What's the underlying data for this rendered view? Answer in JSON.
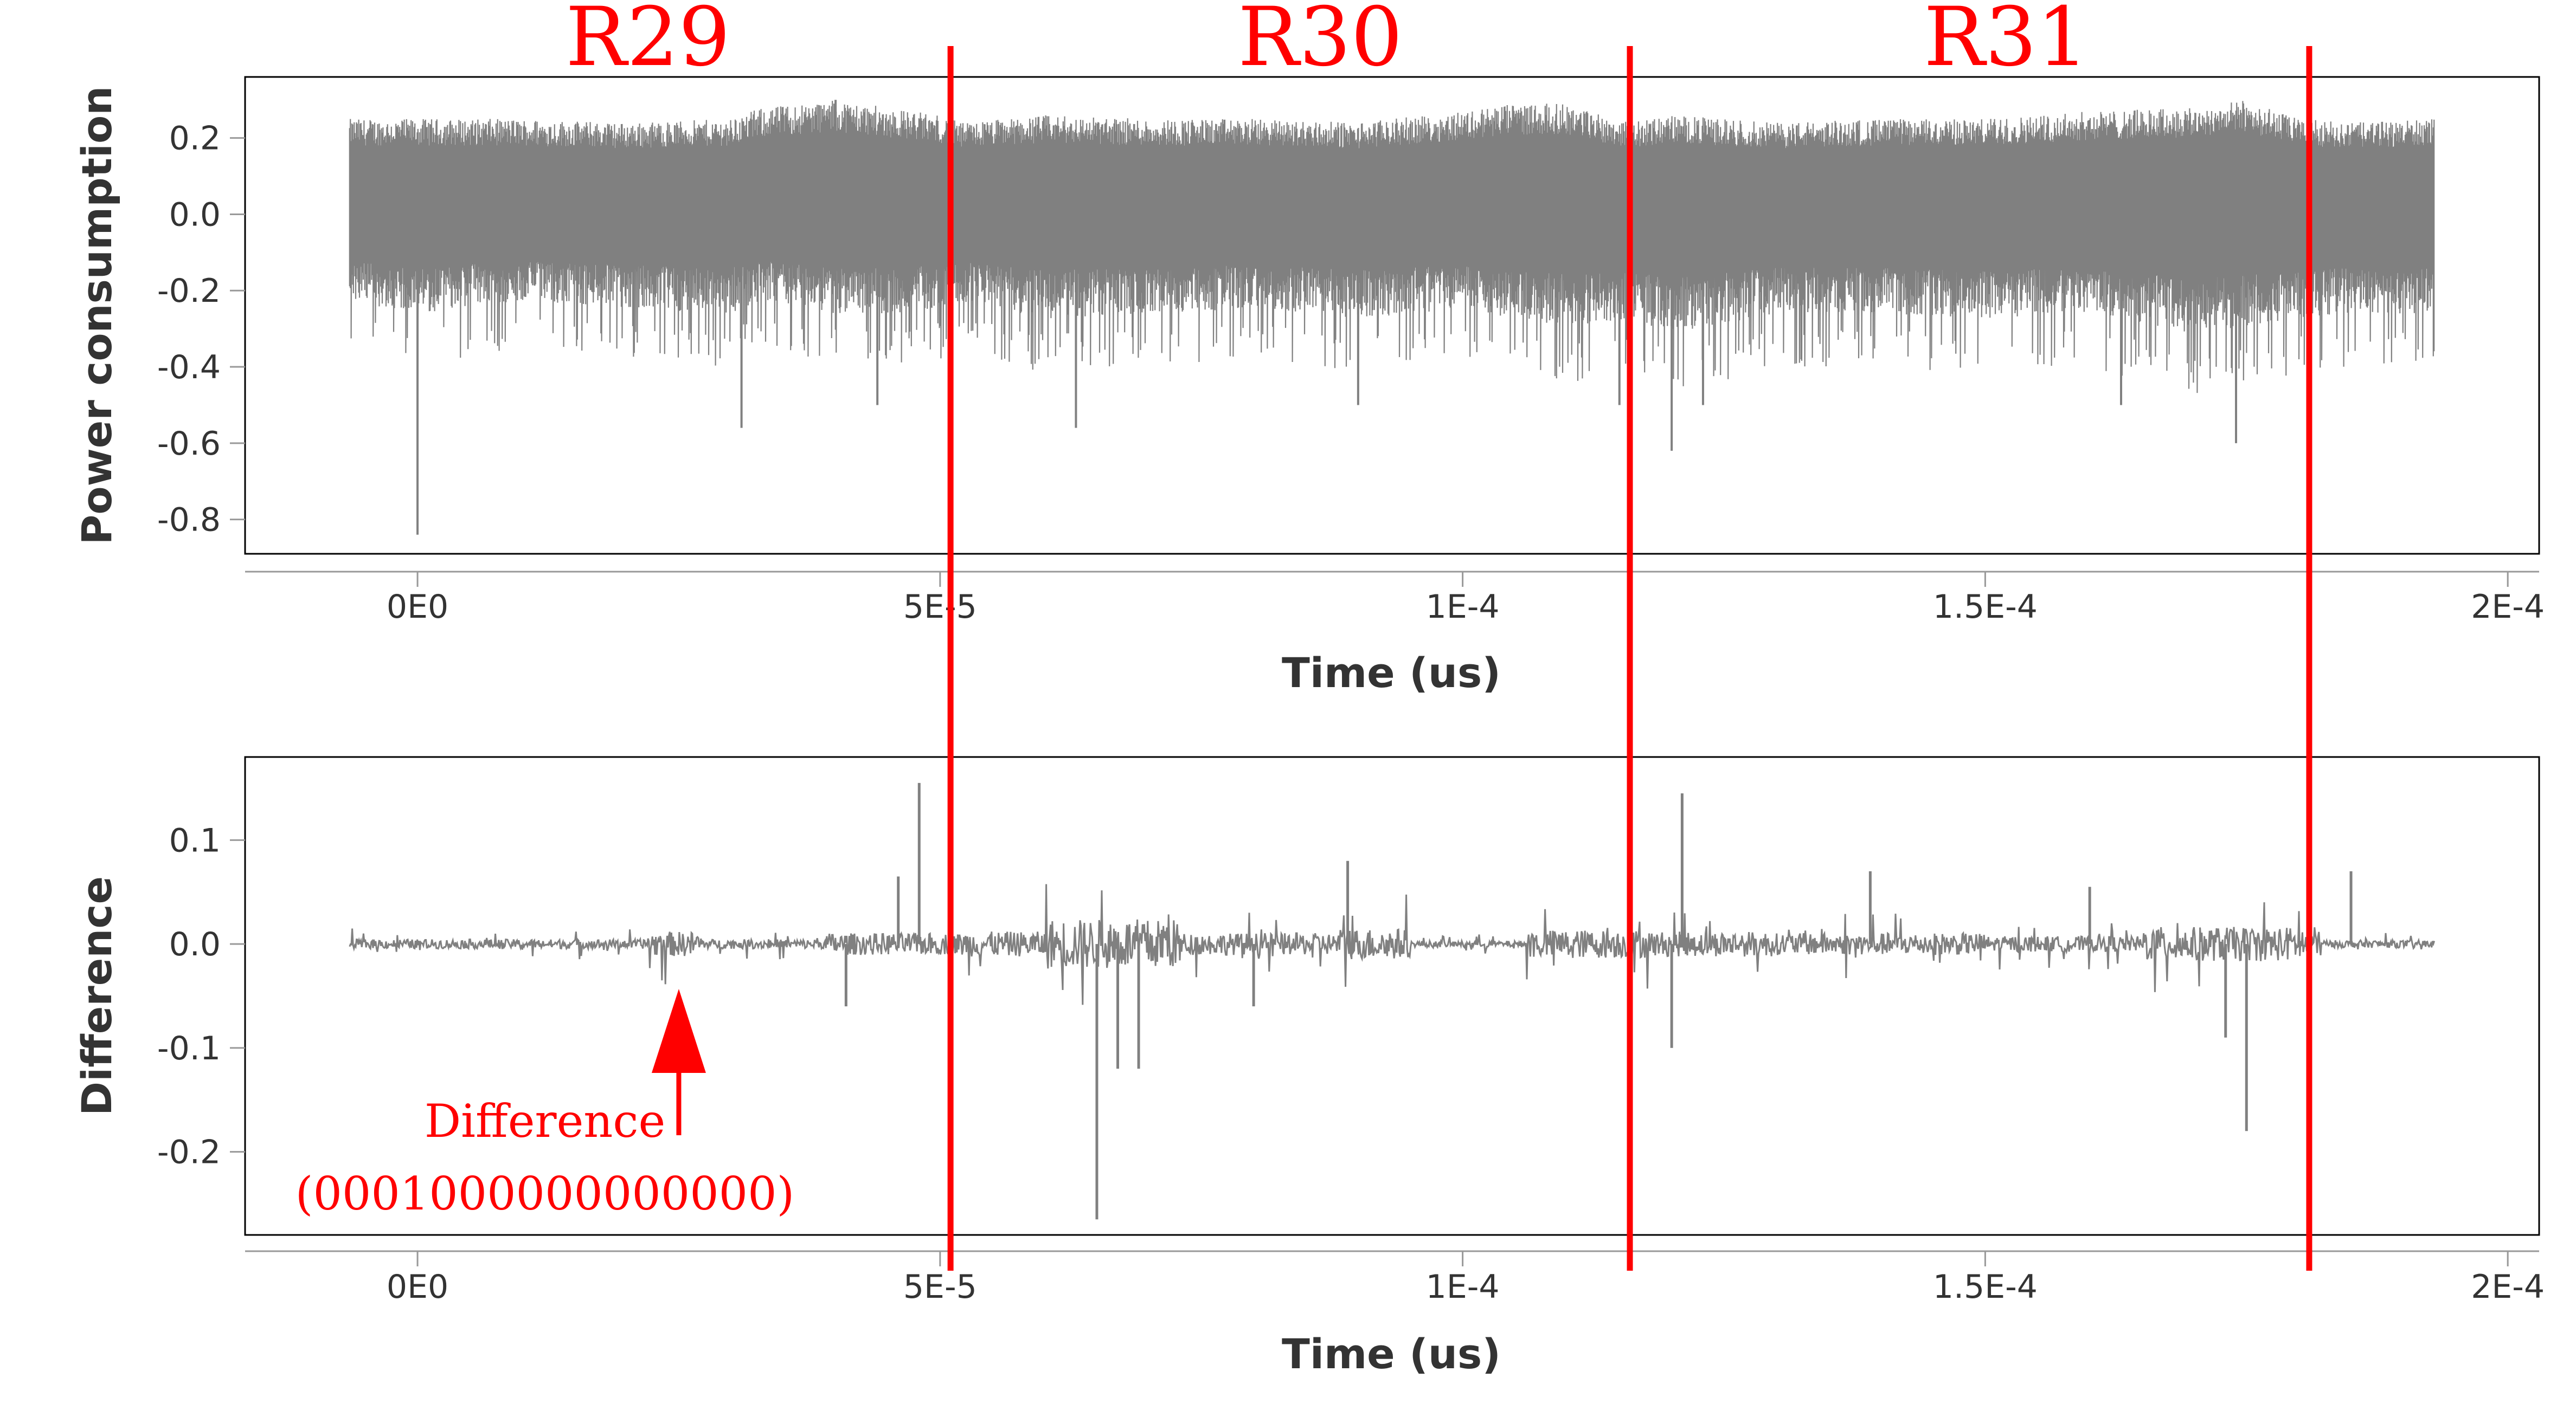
{
  "colors": {
    "trace": "#808080",
    "marker": "#ff0000",
    "axis": "#333333",
    "frame": "#000000"
  },
  "regions": [
    "R29",
    "R30",
    "R31"
  ],
  "region_boundaries": [
    5.1e-05,
    0.000116,
    0.000181
  ],
  "chart_data": [
    {
      "type": "line",
      "ylabel": "Power consumption",
      "xlabel": "Time (us)",
      "xlim": [
        -1.65e-05,
        0.000203
      ],
      "ylim": [
        -0.89,
        0.36
      ],
      "xticks": [
        0,
        5e-05,
        0.0001,
        0.00015,
        0.0002
      ],
      "xtick_labels": [
        "0E0",
        "5E-5",
        "1E-4",
        "1.5E-4",
        "2E-4"
      ],
      "yticks": [
        0.2,
        0.0,
        -0.2,
        -0.4,
        -0.6,
        -0.8
      ],
      "ytick_labels": [
        "0.2",
        "0.0",
        "-0.2",
        "-0.4",
        "-0.6",
        "-0.8"
      ],
      "x_start": -6.5e-06,
      "x_end": 0.000193,
      "envelope": {
        "x": [
          -6.5e-06,
          0,
          1e-05,
          2e-05,
          3e-05,
          3.3e-05,
          4e-05,
          4.5e-05,
          5e-05,
          5.2e-05,
          6e-05,
          7e-05,
          8e-05,
          9e-05,
          0.0001,
          0.000105,
          0.00011,
          0.000116,
          0.00012,
          0.00013,
          0.00014,
          0.00015,
          0.00016,
          0.00017,
          0.000175,
          0.00018,
          0.000185,
          0.000193
        ],
        "upper": [
          0.25,
          0.25,
          0.25,
          0.24,
          0.25,
          0.28,
          0.3,
          0.28,
          0.26,
          0.24,
          0.26,
          0.25,
          0.25,
          0.24,
          0.27,
          0.29,
          0.29,
          0.24,
          0.26,
          0.24,
          0.25,
          0.25,
          0.27,
          0.28,
          0.3,
          0.25,
          0.24,
          0.25
        ],
        "lower": [
          -0.35,
          -0.4,
          -0.35,
          -0.38,
          -0.4,
          -0.35,
          -0.4,
          -0.4,
          -0.38,
          -0.35,
          -0.42,
          -0.4,
          -0.38,
          -0.42,
          -0.38,
          -0.42,
          -0.45,
          -0.42,
          -0.48,
          -0.4,
          -0.4,
          -0.42,
          -0.4,
          -0.48,
          -0.45,
          -0.42,
          -0.4,
          -0.4
        ]
      },
      "spikes": [
        {
          "x": 0,
          "y": -0.84
        },
        {
          "x": 3.1e-05,
          "y": -0.56
        },
        {
          "x": 4.4e-05,
          "y": -0.5
        },
        {
          "x": 6.3e-05,
          "y": -0.56
        },
        {
          "x": 9e-05,
          "y": -0.5
        },
        {
          "x": 0.000115,
          "y": -0.5
        },
        {
          "x": 0.00012,
          "y": -0.62
        },
        {
          "x": 0.000123,
          "y": -0.5
        },
        {
          "x": 0.000174,
          "y": -0.6
        },
        {
          "x": 0.000163,
          "y": -0.5
        },
        {
          "x": 4e-05,
          "y": 0.3
        }
      ]
    },
    {
      "type": "line",
      "ylabel": "Difference",
      "xlabel": "Time (us)",
      "xlim": [
        -1.65e-05,
        0.000203
      ],
      "ylim": [
        -0.28,
        0.18
      ],
      "xticks": [
        0,
        5e-05,
        0.0001,
        0.00015,
        0.0002
      ],
      "xtick_labels": [
        "0E0",
        "5E-5",
        "1E-4",
        "1.5E-4",
        "2E-4"
      ],
      "yticks": [
        0.1,
        0.0,
        -0.1,
        -0.2
      ],
      "ytick_labels": [
        "0.1",
        "0.0",
        "-0.1",
        "-0.2"
      ],
      "x_start": -6.5e-06,
      "x_end": 0.000193,
      "activity": [
        {
          "x": [
            -6.5e-06,
            2.2e-05
          ],
          "amp": 0.015
        },
        {
          "x": [
            2.2e-05,
            2.7e-05
          ],
          "amp": 0.04
        },
        {
          "x": [
            2.7e-05,
            3.9e-05
          ],
          "amp": 0.015
        },
        {
          "x": [
            3.9e-05,
            5.2e-05
          ],
          "amp": 0.035
        },
        {
          "x": [
            5.2e-05,
            6e-05
          ],
          "amp": 0.04
        },
        {
          "x": [
            6e-05,
            7.3e-05
          ],
          "amp": 0.08
        },
        {
          "x": [
            7.3e-05,
            8.8e-05
          ],
          "amp": 0.035
        },
        {
          "x": [
            8.8e-05,
            9.5e-05
          ],
          "amp": 0.05
        },
        {
          "x": [
            9.5e-05,
            0.000106
          ],
          "amp": 0.01
        },
        {
          "x": [
            0.000106,
            0.000118
          ],
          "amp": 0.045
        },
        {
          "x": [
            0.000118,
            0.00013
          ],
          "amp": 0.04
        },
        {
          "x": [
            0.00013,
            0.00015
          ],
          "amp": 0.035
        },
        {
          "x": [
            0.00015,
            0.000165
          ],
          "amp": 0.025
        },
        {
          "x": [
            0.000165,
            0.000182
          ],
          "amp": 0.055
        },
        {
          "x": [
            0.000182,
            0.000193
          ],
          "amp": 0.012
        }
      ],
      "spikes": [
        {
          "x": 4.8e-05,
          "y": 0.155
        },
        {
          "x": 4.6e-05,
          "y": 0.065
        },
        {
          "x": 6.5e-05,
          "y": -0.265
        },
        {
          "x": 6.7e-05,
          "y": -0.12
        },
        {
          "x": 6.9e-05,
          "y": -0.12
        },
        {
          "x": 0.000121,
          "y": 0.145
        },
        {
          "x": 0.00012,
          "y": -0.1
        },
        {
          "x": 8.9e-05,
          "y": 0.08
        },
        {
          "x": 0.000175,
          "y": -0.18
        },
        {
          "x": 0.000173,
          "y": -0.09
        },
        {
          "x": 0.000185,
          "y": 0.07
        },
        {
          "x": 0.000139,
          "y": 0.07
        },
        {
          "x": 0.00016,
          "y": 0.055
        },
        {
          "x": 4.1e-05,
          "y": -0.06
        },
        {
          "x": 8e-05,
          "y": -0.06
        }
      ],
      "annotation": {
        "label": "Difference",
        "value": "(0001000000000000)",
        "x": 2.5e-05
      }
    }
  ]
}
